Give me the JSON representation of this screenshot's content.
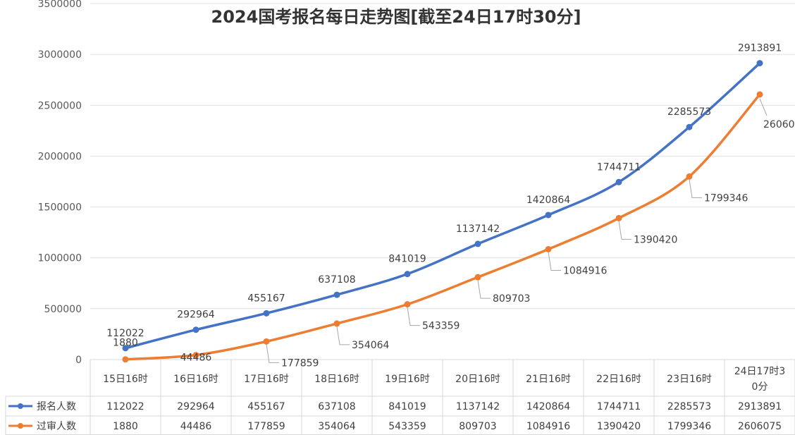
{
  "chart_data": {
    "type": "line",
    "title": "2024国考报名每日走势图[截至24日17时30分]",
    "categories": [
      "15日16时",
      "16日16时",
      "17日16时",
      "18日16时",
      "19日16时",
      "20日16时",
      "21日16时",
      "22日16时",
      "23日16时",
      "24日17时30分"
    ],
    "series": [
      {
        "name": "报名人数",
        "color": "#4472C4",
        "values": [
          112022,
          292964,
          455167,
          637108,
          841019,
          1137142,
          1420864,
          1744711,
          2285573,
          2913891
        ]
      },
      {
        "name": "过审人数",
        "color": "#ED7D31",
        "values": [
          1880,
          44486,
          177859,
          354064,
          543359,
          809703,
          1084916,
          1390420,
          1799346,
          2606075
        ]
      }
    ],
    "ylim": [
      0,
      3500000
    ],
    "yticks": [
      "0",
      "500000",
      "1000000",
      "1500000",
      "2000000",
      "2500000",
      "3000000",
      "3500000"
    ],
    "grid": true,
    "legend": "data-table",
    "data_table": true
  }
}
